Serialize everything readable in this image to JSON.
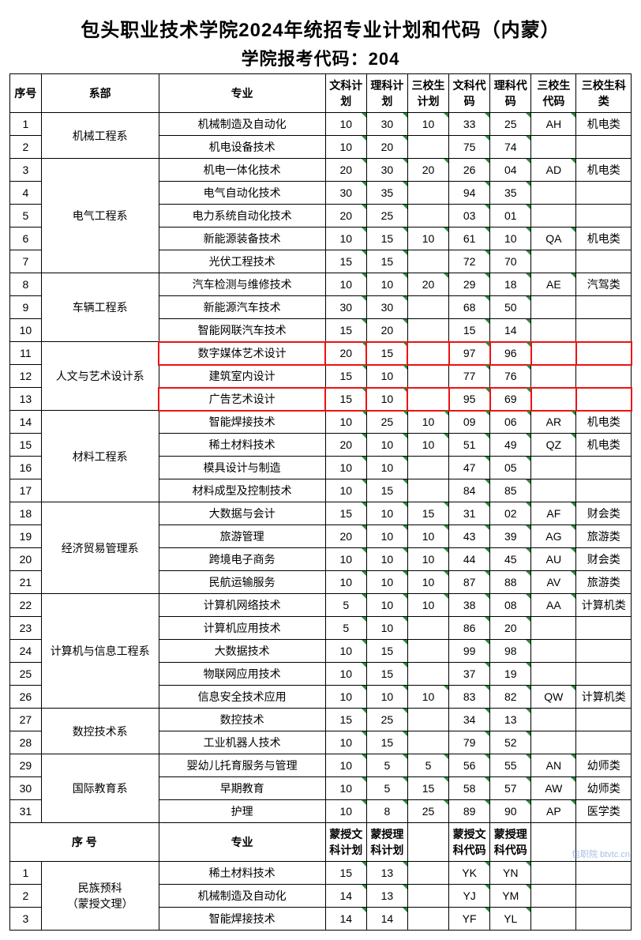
{
  "title": "包头职业技术学院2024年统招专业计划和代码（内蒙）",
  "subtitle": "学院报考代码：204",
  "headers": {
    "seq": "序号",
    "dept": "系部",
    "major": "专业",
    "c1": "文科计划",
    "c2": "理科计划",
    "c3": "三校生计划",
    "c4": "文科代码",
    "c5": "理科代码",
    "c6": "三校生代码",
    "c7": "三校生科类"
  },
  "headers2": {
    "seq": "序 号",
    "major": "专业",
    "c1": "蒙授文科计划",
    "c2": "蒙授理科计划",
    "c4": "蒙授文科代码",
    "c5": "蒙授理科代码"
  },
  "highlight_rows": [
    11,
    13
  ],
  "highlight_color": "#ee1111",
  "triangle_color": "#2a8a3a",
  "departments": [
    {
      "name": "机械工程系",
      "rows": [
        {
          "seq": 1,
          "major": "机械制造及自动化",
          "c1": "10",
          "c2": "30",
          "c3": "10",
          "c4": "33",
          "c5": "25",
          "c6": "AH",
          "c7": "机电类"
        },
        {
          "seq": 2,
          "major": "机电设备技术",
          "c1": "10",
          "c2": "20",
          "c3": "",
          "c4": "75",
          "c5": "74",
          "c6": "",
          "c7": ""
        }
      ]
    },
    {
      "name": "电气工程系",
      "rows": [
        {
          "seq": 3,
          "major": "机电一体化技术",
          "c1": "20",
          "c2": "30",
          "c3": "20",
          "c4": "26",
          "c5": "04",
          "c6": "AD",
          "c7": "机电类"
        },
        {
          "seq": 4,
          "major": "电气自动化技术",
          "c1": "30",
          "c2": "35",
          "c3": "",
          "c4": "94",
          "c5": "35",
          "c6": "",
          "c7": ""
        },
        {
          "seq": 5,
          "major": "电力系统自动化技术",
          "c1": "20",
          "c2": "25",
          "c3": "",
          "c4": "03",
          "c5": "01",
          "c6": "",
          "c7": ""
        },
        {
          "seq": 6,
          "major": "新能源装备技术",
          "c1": "10",
          "c2": "15",
          "c3": "10",
          "c4": "61",
          "c5": "10",
          "c6": "QA",
          "c7": "机电类"
        },
        {
          "seq": 7,
          "major": "光伏工程技术",
          "c1": "15",
          "c2": "15",
          "c3": "",
          "c4": "72",
          "c5": "70",
          "c6": "",
          "c7": ""
        }
      ]
    },
    {
      "name": "车辆工程系",
      "rows": [
        {
          "seq": 8,
          "major": "汽车检测与维修技术",
          "c1": "10",
          "c2": "10",
          "c3": "20",
          "c4": "29",
          "c5": "18",
          "c6": "AE",
          "c7": "汽驾类"
        },
        {
          "seq": 9,
          "major": "新能源汽车技术",
          "c1": "30",
          "c2": "30",
          "c3": "",
          "c4": "68",
          "c5": "50",
          "c6": "",
          "c7": ""
        },
        {
          "seq": 10,
          "major": "智能网联汽车技术",
          "c1": "15",
          "c2": "20",
          "c3": "",
          "c4": "15",
          "c5": "14",
          "c6": "",
          "c7": ""
        }
      ]
    },
    {
      "name": "人文与艺术设计系",
      "rows": [
        {
          "seq": 11,
          "major": "数字媒体艺术设计",
          "c1": "20",
          "c2": "15",
          "c3": "",
          "c4": "97",
          "c5": "96",
          "c6": "",
          "c7": ""
        },
        {
          "seq": 12,
          "major": "建筑室内设计",
          "c1": "15",
          "c2": "10",
          "c3": "",
          "c4": "77",
          "c5": "76",
          "c6": "",
          "c7": ""
        },
        {
          "seq": 13,
          "major": "广告艺术设计",
          "c1": "15",
          "c2": "10",
          "c3": "",
          "c4": "95",
          "c5": "69",
          "c6": "",
          "c7": ""
        }
      ]
    },
    {
      "name": "材料工程系",
      "rows": [
        {
          "seq": 14,
          "major": "智能焊接技术",
          "c1": "10",
          "c2": "25",
          "c3": "10",
          "c4": "09",
          "c5": "06",
          "c6": "AR",
          "c7": "机电类"
        },
        {
          "seq": 15,
          "major": "稀土材料技术",
          "c1": "20",
          "c2": "10",
          "c3": "10",
          "c4": "51",
          "c5": "49",
          "c6": "QZ",
          "c7": "机电类"
        },
        {
          "seq": 16,
          "major": "模具设计与制造",
          "c1": "10",
          "c2": "10",
          "c3": "",
          "c4": "47",
          "c5": "05",
          "c6": "",
          "c7": ""
        },
        {
          "seq": 17,
          "major": "材料成型及控制技术",
          "c1": "10",
          "c2": "15",
          "c3": "",
          "c4": "84",
          "c5": "85",
          "c6": "",
          "c7": ""
        }
      ]
    },
    {
      "name": "经济贸易管理系",
      "rows": [
        {
          "seq": 18,
          "major": "大数据与会计",
          "c1": "15",
          "c2": "10",
          "c3": "15",
          "c4": "31",
          "c5": "02",
          "c6": "AF",
          "c7": "财会类"
        },
        {
          "seq": 19,
          "major": "旅游管理",
          "c1": "20",
          "c2": "10",
          "c3": "10",
          "c4": "43",
          "c5": "39",
          "c6": "AG",
          "c7": "旅游类"
        },
        {
          "seq": 20,
          "major": "跨境电子商务",
          "c1": "10",
          "c2": "10",
          "c3": "10",
          "c4": "44",
          "c5": "45",
          "c6": "AU",
          "c7": "财会类"
        },
        {
          "seq": 21,
          "major": "民航运输服务",
          "c1": "10",
          "c2": "10",
          "c3": "10",
          "c4": "87",
          "c5": "88",
          "c6": "AV",
          "c7": "旅游类"
        }
      ]
    },
    {
      "name": "计算机与信息工程系",
      "rows": [
        {
          "seq": 22,
          "major": "计算机网络技术",
          "c1": "5",
          "c2": "10",
          "c3": "10",
          "c4": "38",
          "c5": "08",
          "c6": "AA",
          "c7": "计算机类"
        },
        {
          "seq": 23,
          "major": "计算机应用技术",
          "c1": "5",
          "c2": "10",
          "c3": "",
          "c4": "86",
          "c5": "20",
          "c6": "",
          "c7": ""
        },
        {
          "seq": 24,
          "major": "大数据技术",
          "c1": "10",
          "c2": "15",
          "c3": "",
          "c4": "99",
          "c5": "98",
          "c6": "",
          "c7": ""
        },
        {
          "seq": 25,
          "major": "物联网应用技术",
          "c1": "10",
          "c2": "15",
          "c3": "",
          "c4": "37",
          "c5": "19",
          "c6": "",
          "c7": ""
        },
        {
          "seq": 26,
          "major": "信息安全技术应用",
          "c1": "10",
          "c2": "10",
          "c3": "10",
          "c4": "83",
          "c5": "82",
          "c6": "QW",
          "c7": "计算机类"
        }
      ]
    },
    {
      "name": "数控技术系",
      "rows": [
        {
          "seq": 27,
          "major": "数控技术",
          "c1": "15",
          "c2": "25",
          "c3": "",
          "c4": "34",
          "c5": "13",
          "c6": "",
          "c7": ""
        },
        {
          "seq": 28,
          "major": "工业机器人技术",
          "c1": "10",
          "c2": "15",
          "c3": "",
          "c4": "79",
          "c5": "52",
          "c6": "",
          "c7": ""
        }
      ]
    },
    {
      "name": "国际教育系",
      "rows": [
        {
          "seq": 29,
          "major": "婴幼儿托育服务与管理",
          "c1": "10",
          "c2": "5",
          "c3": "5",
          "c4": "56",
          "c5": "55",
          "c6": "AN",
          "c7": "幼师类"
        },
        {
          "seq": 30,
          "major": "早期教育",
          "c1": "10",
          "c2": "5",
          "c3": "15",
          "c4": "58",
          "c5": "57",
          "c6": "AW",
          "c7": "幼师类"
        },
        {
          "seq": 31,
          "major": "护理",
          "c1": "10",
          "c2": "8",
          "c3": "25",
          "c4": "89",
          "c5": "90",
          "c6": "AP",
          "c7": "医学类"
        }
      ]
    }
  ],
  "departments2": [
    {
      "name": "民族预科\n（蒙授文理）",
      "rows": [
        {
          "seq": 1,
          "major": "稀土材料技术",
          "c1": "15",
          "c2": "13",
          "c4": "YK",
          "c5": "YN"
        },
        {
          "seq": 2,
          "major": "机械制造及自动化",
          "c1": "14",
          "c2": "13",
          "c4": "YJ",
          "c5": "YM"
        },
        {
          "seq": 3,
          "major": "智能焊接技术",
          "c1": "14",
          "c2": "14",
          "c4": "YF",
          "c5": "YL"
        }
      ]
    }
  ],
  "watermark": "包职院 btvtc.cn"
}
